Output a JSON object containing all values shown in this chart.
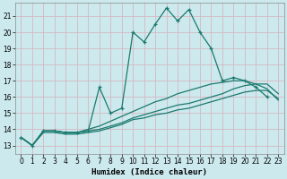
{
  "xlabel": "Humidex (Indice chaleur)",
  "bg_color": "#cce9ee",
  "grid_color": "#b8d8dd",
  "line_color": "#1a7a6e",
  "xlim": [
    -0.5,
    23.5
  ],
  "ylim": [
    12.5,
    21.8
  ],
  "yticks": [
    13,
    14,
    15,
    16,
    17,
    18,
    19,
    20,
    21
  ],
  "xticks": [
    0,
    1,
    2,
    3,
    4,
    5,
    6,
    7,
    8,
    9,
    10,
    11,
    12,
    13,
    14,
    15,
    16,
    17,
    18,
    19,
    20,
    21,
    22,
    23
  ],
  "series1_x": [
    0,
    1,
    2,
    3,
    4,
    5,
    6,
    7,
    8,
    9,
    10,
    11,
    12,
    13,
    14,
    15,
    16,
    17,
    18,
    19,
    20,
    21,
    22
  ],
  "series1_y": [
    13.5,
    13.0,
    13.9,
    13.9,
    13.8,
    13.8,
    13.9,
    16.6,
    15.0,
    15.3,
    20.0,
    19.4,
    20.5,
    21.5,
    20.7,
    21.4,
    20.0,
    19.0,
    17.0,
    17.2,
    17.0,
    16.6,
    16.0
  ],
  "series2_x": [
    0,
    1,
    2,
    3,
    4,
    5,
    6,
    7,
    8,
    9,
    10,
    11,
    12,
    13,
    14,
    15,
    16,
    17,
    18,
    19,
    20,
    21,
    22,
    23
  ],
  "series2_y": [
    13.5,
    13.0,
    13.8,
    13.8,
    13.7,
    13.7,
    13.8,
    13.9,
    14.1,
    14.3,
    14.6,
    14.7,
    14.9,
    15.0,
    15.2,
    15.3,
    15.5,
    15.7,
    15.9,
    16.1,
    16.3,
    16.4,
    16.4,
    15.9
  ],
  "series3_x": [
    0,
    1,
    2,
    3,
    4,
    5,
    6,
    7,
    8,
    9,
    10,
    11,
    12,
    13,
    14,
    15,
    16,
    17,
    18,
    19,
    20,
    21,
    22,
    23
  ],
  "series3_y": [
    13.5,
    13.0,
    13.9,
    13.9,
    13.8,
    13.8,
    13.9,
    14.0,
    14.2,
    14.4,
    14.7,
    14.9,
    15.1,
    15.3,
    15.5,
    15.6,
    15.8,
    16.0,
    16.2,
    16.5,
    16.7,
    16.8,
    16.8,
    16.2
  ],
  "series4_x": [
    0,
    1,
    2,
    3,
    4,
    5,
    6,
    7,
    8,
    9,
    10,
    11,
    12,
    13,
    14,
    15,
    16,
    17,
    18,
    19,
    20,
    21,
    22,
    23
  ],
  "series4_y": [
    13.5,
    13.0,
    13.9,
    13.9,
    13.8,
    13.8,
    14.0,
    14.2,
    14.5,
    14.8,
    15.1,
    15.4,
    15.7,
    15.9,
    16.2,
    16.4,
    16.6,
    16.8,
    16.9,
    17.0,
    17.0,
    16.8,
    16.5,
    15.8
  ]
}
